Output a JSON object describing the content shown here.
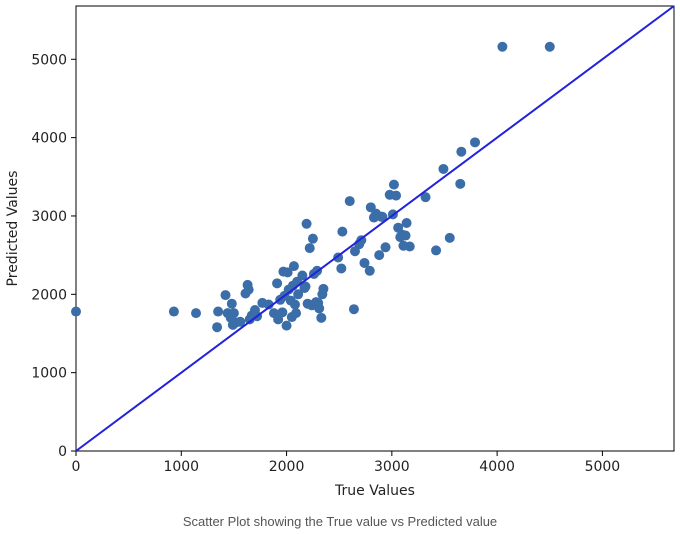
{
  "caption": "Scatter Plot showing the True value vs Predicted value",
  "colors": {
    "points": "#3b6ea8",
    "reference_line": "#2222dd",
    "axes": "#000000"
  },
  "chart_data": {
    "type": "scatter",
    "title": "",
    "xlabel": "True Values",
    "ylabel": "Predicted Values",
    "xlim": [
      0,
      5680
    ],
    "ylim": [
      0,
      5680
    ],
    "xticks": [
      0,
      1000,
      2000,
      3000,
      4000,
      5000
    ],
    "yticks": [
      0,
      1000,
      2000,
      3000,
      4000,
      5000
    ],
    "xtick_labels": [
      "0",
      "1000",
      "2000",
      "3000",
      "4000",
      "5000"
    ],
    "ytick_labels": [
      "0",
      "1000",
      "2000",
      "3000",
      "4000",
      "5000"
    ],
    "grid": false,
    "reference_line": {
      "from": [
        0,
        0
      ],
      "to": [
        5680,
        5680
      ]
    },
    "series": [
      {
        "x": [
          0,
          930,
          1140,
          1340,
          1350,
          1420,
          1440,
          1470,
          1480,
          1490,
          1500,
          1520,
          1560,
          1610,
          1630,
          1640,
          1650,
          1670,
          1700,
          1720,
          1770,
          1830,
          1880,
          1910,
          1920,
          1940,
          1960,
          1970,
          1980,
          2000,
          2010,
          2020,
          2040,
          2050,
          2060,
          2070,
          2080,
          2090,
          2100,
          2110,
          2150,
          2170,
          2180,
          2190,
          2200,
          2220,
          2240,
          2250,
          2260,
          2280,
          2290,
          2300,
          2310,
          2330,
          2340,
          2350,
          2490,
          2520,
          2530,
          2600,
          2640,
          2650,
          2690,
          2710,
          2740,
          2790,
          2800,
          2830,
          2850,
          2880,
          2900,
          2910,
          2940,
          2980,
          3010,
          3020,
          3040,
          3060,
          3080,
          3100,
          3110,
          3130,
          3140,
          3170,
          3320,
          3420,
          3490,
          3550,
          3650,
          3660,
          3790,
          4050,
          4500
        ],
        "y": [
          1780,
          1780,
          1760,
          1580,
          1780,
          1990,
          1760,
          1700,
          1880,
          1610,
          1760,
          1640,
          1650,
          2010,
          2120,
          2060,
          1680,
          1730,
          1800,
          1720,
          1890,
          1870,
          1760,
          2140,
          1680,
          1930,
          1770,
          2290,
          1980,
          1600,
          2280,
          2060,
          1920,
          1710,
          2110,
          2360,
          1870,
          1760,
          2160,
          2000,
          2240,
          2080,
          2100,
          2900,
          1880,
          2590,
          1860,
          2710,
          2260,
          1900,
          2300,
          1890,
          1820,
          1700,
          2000,
          2070,
          2470,
          2330,
          2800,
          3190,
          1810,
          2550,
          2640,
          2690,
          2400,
          2300,
          3110,
          2980,
          3030,
          2500,
          2990,
          2990,
          2600,
          3270,
          3020,
          3400,
          3260,
          2850,
          2730,
          2760,
          2620,
          2750,
          2910,
          2610,
          3240,
          2560,
          3600,
          2720,
          3410,
          3820,
          3940,
          5160,
          5160
        ]
      }
    ]
  }
}
